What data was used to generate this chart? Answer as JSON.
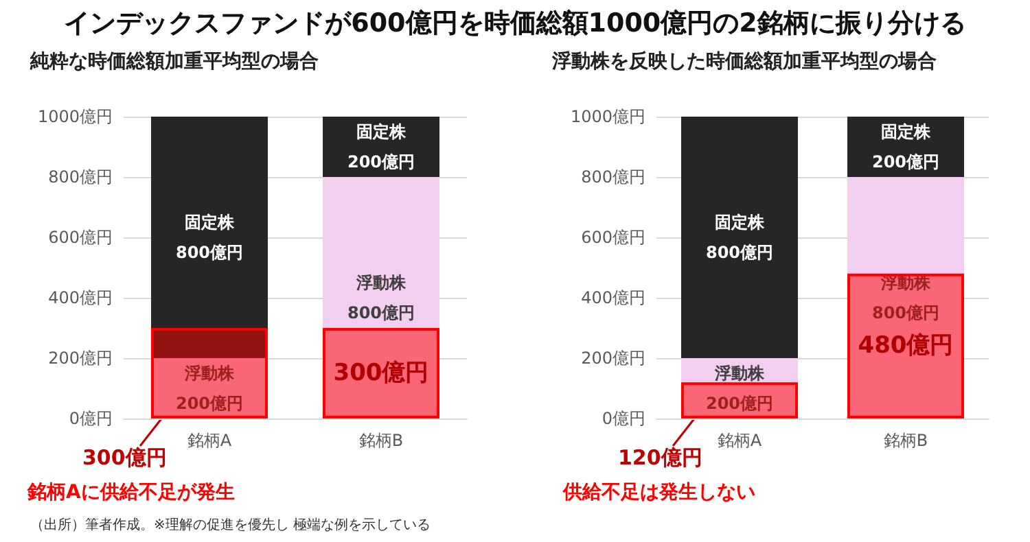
{
  "chart_data": [
    {
      "type": "bar",
      "title": "インデックスファンドが600億円を時価総額1000億円の2銘柄に振り分ける",
      "subtitle": "純粋な時価総額加重平均型の場合",
      "categories": [
        "銘柄A",
        "銘柄B"
      ],
      "stacked": true,
      "grid": "y",
      "ylim": [
        0,
        1000
      ],
      "yticks": [
        {
          "value": 0,
          "label": "0億円"
        },
        {
          "value": 200,
          "label": "200億円"
        },
        {
          "value": 400,
          "label": "400億円"
        },
        {
          "value": 600,
          "label": "600億円"
        },
        {
          "value": 800,
          "label": "800億円"
        },
        {
          "value": 1000,
          "label": "1000億円"
        }
      ],
      "series": [
        {
          "name": "浮動株",
          "color": "#f2cfee",
          "values": [
            200,
            800
          ],
          "value_labels": [
            "200億円",
            "800億円"
          ]
        },
        {
          "name": "固定株",
          "color": "#262626",
          "values": [
            800,
            200
          ],
          "value_labels": [
            "800億円",
            "200億円"
          ]
        },
        {
          "color": "#ff0000",
          "axis": "y2",
          "values": [
            300,
            300
          ],
          "value_labels": [
            null,
            "300億円"
          ]
        }
      ],
      "annotations": [
        "300億円",
        "銘柄Aに供給不足が発生",
        "（出所）筆者作成。※理解の促進を優先し 極端な例を示している"
      ]
    },
    {
      "type": "bar",
      "subtitle": "浮動株を反映した時価総額加重平均型の場合",
      "categories": [
        "銘柄A",
        "銘柄B"
      ],
      "stacked": true,
      "grid": "y",
      "ylim": [
        0,
        1000
      ],
      "yticks": [
        {
          "value": 0,
          "label": "0億円"
        },
        {
          "value": 200,
          "label": "200億円"
        },
        {
          "value": 400,
          "label": "400億円"
        },
        {
          "value": 600,
          "label": "600億円"
        },
        {
          "value": 800,
          "label": "800億円"
        },
        {
          "value": 1000,
          "label": "1000億円"
        }
      ],
      "series": [
        {
          "name": "浮動株",
          "color": "#f2cfee",
          "values": [
            200,
            800
          ],
          "value_labels": [
            "200億円",
            "800億円"
          ]
        },
        {
          "name": "固定株",
          "color": "#262626",
          "values": [
            800,
            200
          ],
          "value_labels": [
            "800億円",
            "200億円"
          ]
        },
        {
          "color": "#ff0000",
          "axis": "y2",
          "values": [
            120,
            480
          ],
          "value_labels": [
            null,
            "480億円"
          ]
        }
      ],
      "annotations": [
        "120億円",
        "供給不足は発生しない"
      ]
    }
  ]
}
